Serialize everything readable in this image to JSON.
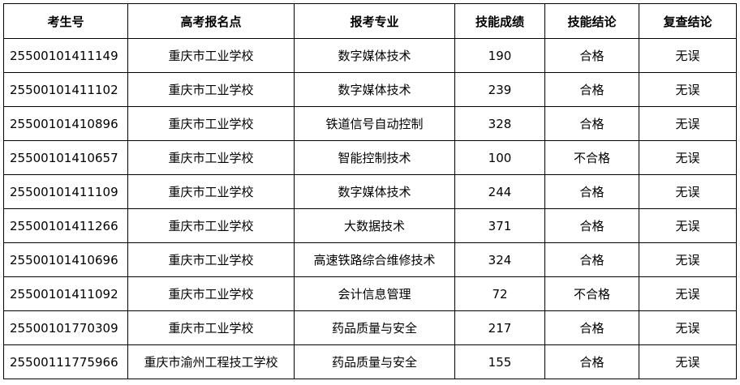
{
  "table": {
    "headers": [
      "考生号",
      "高考报名点",
      "报考专业",
      "技能成绩",
      "技能结论",
      "复查结论"
    ],
    "rows": [
      [
        "25500101411149",
        "重庆市工业学校",
        "数字媒体技术",
        190,
        "合格",
        "无误"
      ],
      [
        "25500101411102",
        "重庆市工业学校",
        "数字媒体技术",
        239,
        "合格",
        "无误"
      ],
      [
        "25500101410896",
        "重庆市工业学校",
        "铁道信号自动控制",
        328,
        "合格",
        "无误"
      ],
      [
        "25500101410657",
        "重庆市工业学校",
        "智能控制技术",
        100,
        "不合格",
        "无误"
      ],
      [
        "25500101411109",
        "重庆市工业学校",
        "数字媒体技术",
        244,
        "合格",
        "无误"
      ],
      [
        "25500101411266",
        "重庆市工业学校",
        "大数据技术",
        371,
        "合格",
        "无误"
      ],
      [
        "25500101410696",
        "重庆市工业学校",
        "高速铁路综合维修技术",
        324,
        "合格",
        "无误"
      ],
      [
        "25500101411092",
        "重庆市工业学校",
        "会计信息管理",
        72,
        "不合格",
        "无误"
      ],
      [
        "25500101770309",
        "重庆市工业学校",
        "药品质量与安全",
        217,
        "合格",
        "无误"
      ],
      [
        "25500111775966",
        "重庆市渝州工程技工学校",
        "药品质量与安全",
        155,
        "合格",
        "无误"
      ]
    ]
  }
}
